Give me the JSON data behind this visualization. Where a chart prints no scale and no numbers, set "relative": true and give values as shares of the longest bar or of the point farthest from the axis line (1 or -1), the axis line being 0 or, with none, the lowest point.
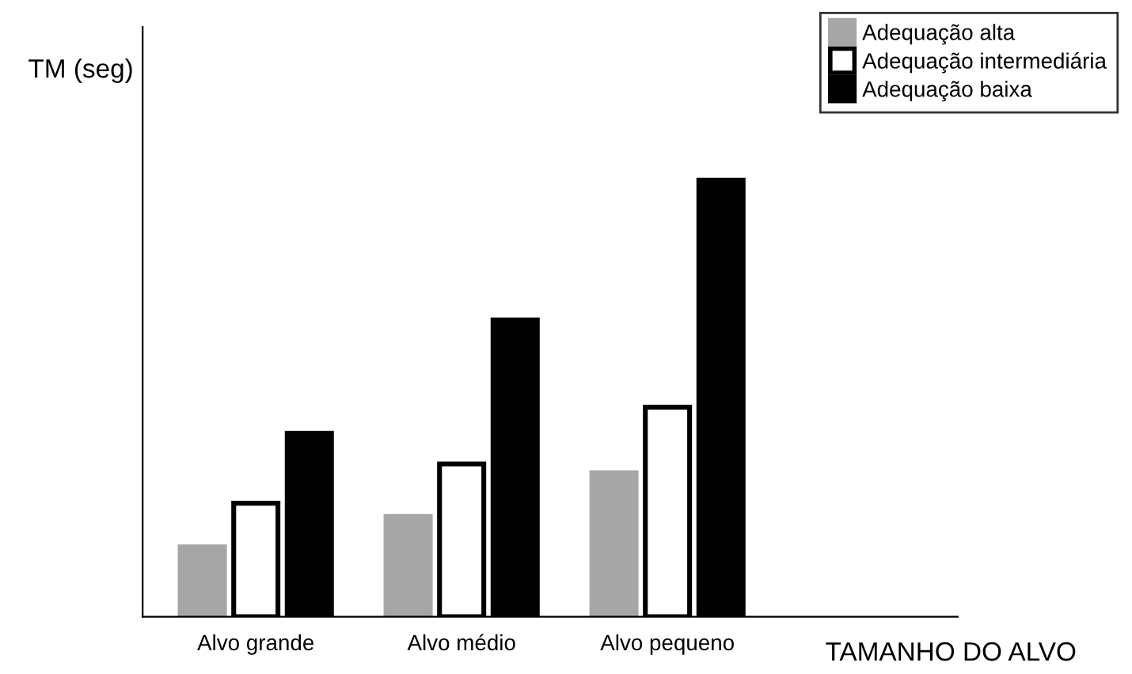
{
  "chart_data": {
    "type": "bar",
    "relative": true,
    "ylabel": "TM (seg)",
    "xlabel": "TAMANHO DO ALVO",
    "categories": [
      "Alvo grande",
      "Alvo médio",
      "Alvo pequeno"
    ],
    "series": [
      {
        "name": "Adequação alta",
        "color": "#a6a6a6",
        "values": [
          0.16,
          0.23,
          0.33
        ]
      },
      {
        "name": "Adequação intermediária",
        "color": "#ffffff",
        "values": [
          0.26,
          0.35,
          0.48
        ]
      },
      {
        "name": "Adequação baixa",
        "color": "#000000",
        "values": [
          0.42,
          0.68,
          1.0
        ]
      }
    ],
    "legend": "top right",
    "grid": false
  }
}
